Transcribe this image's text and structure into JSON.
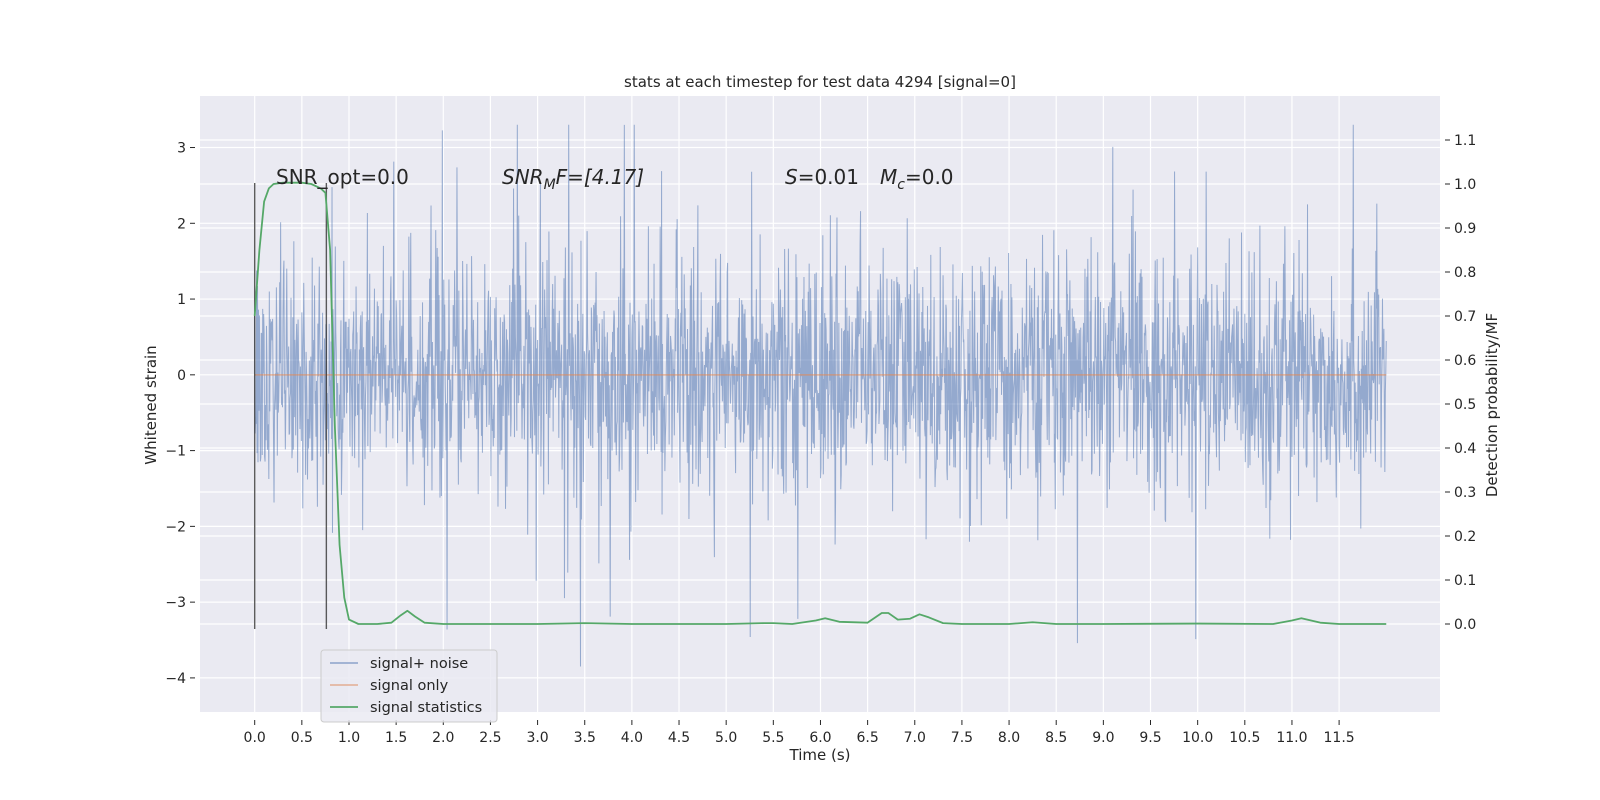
{
  "chart_data": {
    "type": "line",
    "title": "stats at each timestep for test data 4294 [signal=0]",
    "xlabel": "Time (s)",
    "ylabel": "Whitened strain",
    "ylabel_right": "Detection probability/MF",
    "xlim": [
      -0.58,
      12.57
    ],
    "ylim": [
      -4.45,
      3.68
    ],
    "ylim_right": [
      -0.2,
      1.2
    ],
    "x_ticks": [
      "0.0",
      "0.5",
      "1.0",
      "1.5",
      "2.0",
      "2.5",
      "3.0",
      "3.5",
      "4.0",
      "4.5",
      "5.0",
      "5.5",
      "6.0",
      "6.5",
      "7.0",
      "7.5",
      "8.0",
      "8.5",
      "9.0",
      "9.5",
      "10.0",
      "10.5",
      "11.0",
      "11.5"
    ],
    "y_ticks": [
      "3",
      "2",
      "1",
      "0",
      "−1",
      "−2",
      "−3",
      "−4"
    ],
    "y_ticks_right": [
      "1.1",
      "1.0",
      "0.9",
      "0.8",
      "0.7",
      "0.6",
      "0.5",
      "0.4",
      "0.3",
      "0.2",
      "0.1",
      "0.0"
    ],
    "grid": true,
    "legend_position": "lower-left",
    "legend": [
      "signal+ noise",
      "signal only",
      "signal statistics"
    ],
    "annotations": {
      "snr_opt": "SNR_opt=0.0",
      "snr_mf_math": "SNR",
      "snr_mf_sub": "M",
      "snr_mf_rest": "F=[4.17]",
      "s_math": "S",
      "s_rest": "=0.01",
      "mc_math": "M",
      "mc_sub": "c",
      "mc_rest": "=0.0"
    },
    "vertical_lines_x": [
      0.0,
      0.76
    ],
    "series": [
      {
        "name": "signal+ noise",
        "color": "#4c72b0",
        "axis": "left",
        "x_range": [
          0.0,
          12.0
        ],
        "envelope": "dense noise, typical ±1.4, peaks to about +3.3 and −3.85"
      },
      {
        "name": "signal only",
        "color": "#dd8452",
        "axis": "left",
        "x": [
          0.0,
          12.0
        ],
        "y": [
          0.0,
          0.0
        ]
      },
      {
        "name": "signal statistics",
        "color": "#55a868",
        "axis": "right",
        "x": [
          0.0,
          0.05,
          0.1,
          0.15,
          0.2,
          0.3,
          0.4,
          0.5,
          0.6,
          0.65,
          0.7,
          0.75,
          0.8,
          0.85,
          0.9,
          0.95,
          1.0,
          1.1,
          1.3,
          1.45,
          1.55,
          1.62,
          1.7,
          1.8,
          2.0,
          3.0,
          3.5,
          4.0,
          5.0,
          5.4,
          5.5,
          5.7,
          5.95,
          6.05,
          6.2,
          6.5,
          6.65,
          6.72,
          6.82,
          6.95,
          7.05,
          7.15,
          7.3,
          7.5,
          8.0,
          8.25,
          8.5,
          9.0,
          10.0,
          10.8,
          11.0,
          11.1,
          11.3,
          11.5,
          12.0
        ],
        "y": [
          0.7,
          0.85,
          0.96,
          0.99,
          1.0,
          1.003,
          1.003,
          1.003,
          1.0,
          0.995,
          0.99,
          0.98,
          0.85,
          0.45,
          0.18,
          0.06,
          0.01,
          0.0,
          0.0,
          0.003,
          0.02,
          0.03,
          0.017,
          0.003,
          0.0,
          0.0,
          0.002,
          0.0,
          0.0,
          0.002,
          0.002,
          0.0,
          0.008,
          0.013,
          0.005,
          0.003,
          0.025,
          0.025,
          0.01,
          0.012,
          0.022,
          0.015,
          0.002,
          0.0,
          0.0,
          0.004,
          0.0,
          0.0,
          0.001,
          0.0,
          0.008,
          0.013,
          0.003,
          0.0,
          0.0
        ]
      }
    ]
  }
}
